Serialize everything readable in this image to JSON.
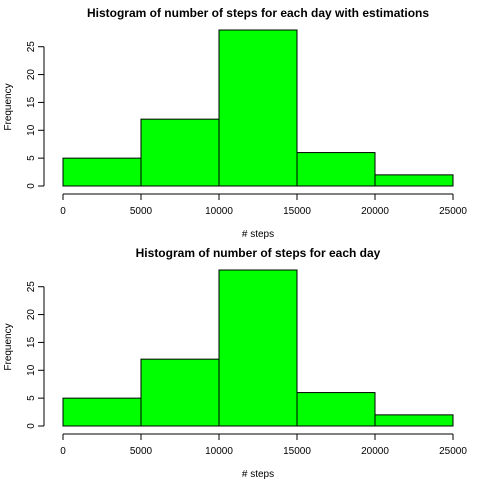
{
  "chart_data": [
    {
      "type": "bar",
      "title": "Histogram of number of steps for each day with estimations",
      "xlabel": "# steps",
      "ylabel": "Frequency",
      "bins": [
        [
          0,
          5000
        ],
        [
          5000,
          10000
        ],
        [
          10000,
          15000
        ],
        [
          15000,
          20000
        ],
        [
          20000,
          25000
        ]
      ],
      "values": [
        5,
        12,
        28,
        6,
        2
      ],
      "xlim": [
        0,
        25000
      ],
      "ylim": [
        0,
        28
      ],
      "xticks": [
        "0",
        "5000",
        "10000",
        "15000",
        "20000",
        "25000"
      ],
      "yticks": [
        "0",
        "5",
        "10",
        "15",
        "20",
        "25"
      ],
      "bar_color": "#00ff00",
      "grid": false
    },
    {
      "type": "bar",
      "title": "Histogram of number of steps for each day",
      "xlabel": "# steps",
      "ylabel": "Frequency",
      "bins": [
        [
          0,
          5000
        ],
        [
          5000,
          10000
        ],
        [
          10000,
          15000
        ],
        [
          15000,
          20000
        ],
        [
          20000,
          25000
        ]
      ],
      "values": [
        5,
        12,
        28,
        6,
        2
      ],
      "xlim": [
        0,
        25000
      ],
      "ylim": [
        0,
        28
      ],
      "xticks": [
        "0",
        "5000",
        "10000",
        "15000",
        "20000",
        "25000"
      ],
      "yticks": [
        "0",
        "5",
        "10",
        "15",
        "20",
        "25"
      ],
      "bar_color": "#00ff00",
      "grid": false
    }
  ]
}
